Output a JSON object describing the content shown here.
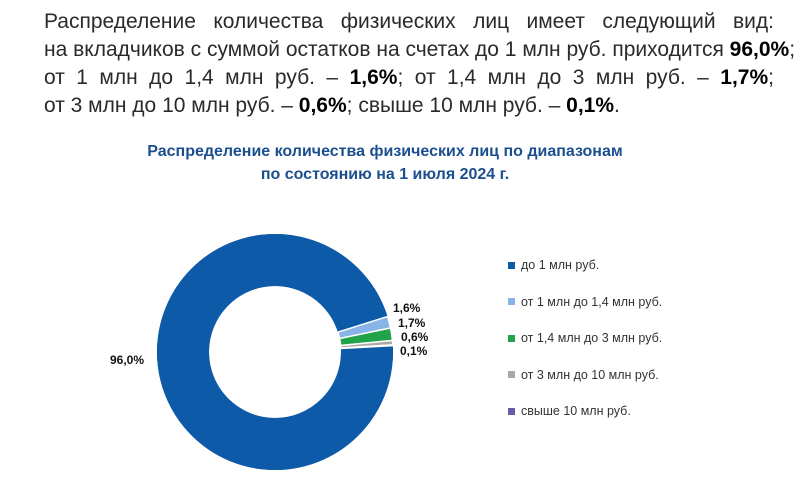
{
  "paragraph": {
    "line1": "Распределение количества физических лиц имеет следующий вид:",
    "line2_pre": "на вкладчиков с суммой остатков на счетах до 1 млн руб. приходится ",
    "line2_val": "96,0%",
    "line2_post": ";",
    "line3_pre": "от 1 млн до 1,4 млн руб. – ",
    "line3_val1": "1,6%",
    "line3_mid": "; от 1,4 млн до 3 млн руб. – ",
    "line3_val2": "1,7%",
    "line3_post": ";",
    "line4_pre": "от 3 млн до 10 млн руб. – ",
    "line4_val1": "0,6%",
    "line4_mid": "; свыше 10 млн руб. – ",
    "line4_val2": "0,1%",
    "line4_post": "."
  },
  "chart_data": {
    "type": "pie",
    "subtype": "donut",
    "title": "Распределение количества физических лиц по диапазонам",
    "subtitle": "по состоянию на 1 июля 2024 г.",
    "legend_position": "right",
    "series": [
      {
        "name": "до 1 млн руб.",
        "value": 96.0,
        "label": "96,0%",
        "color": "#0c5aa8"
      },
      {
        "name": "от 1 млн до 1,4 млн руб.",
        "value": 1.6,
        "label": "1,6%",
        "color": "#88b4e8"
      },
      {
        "name": "от 1,4 млн до 3 млн руб.",
        "value": 1.7,
        "label": "1,7%",
        "color": "#21a34a"
      },
      {
        "name": "от 3 млн до 10 млн руб.",
        "value": 0.6,
        "label": "0,6%",
        "color": "#a9a9a9"
      },
      {
        "name": "свыше 10 млн руб.",
        "value": 0.1,
        "label": "0,1%",
        "color": "#6d5aa6"
      }
    ]
  }
}
